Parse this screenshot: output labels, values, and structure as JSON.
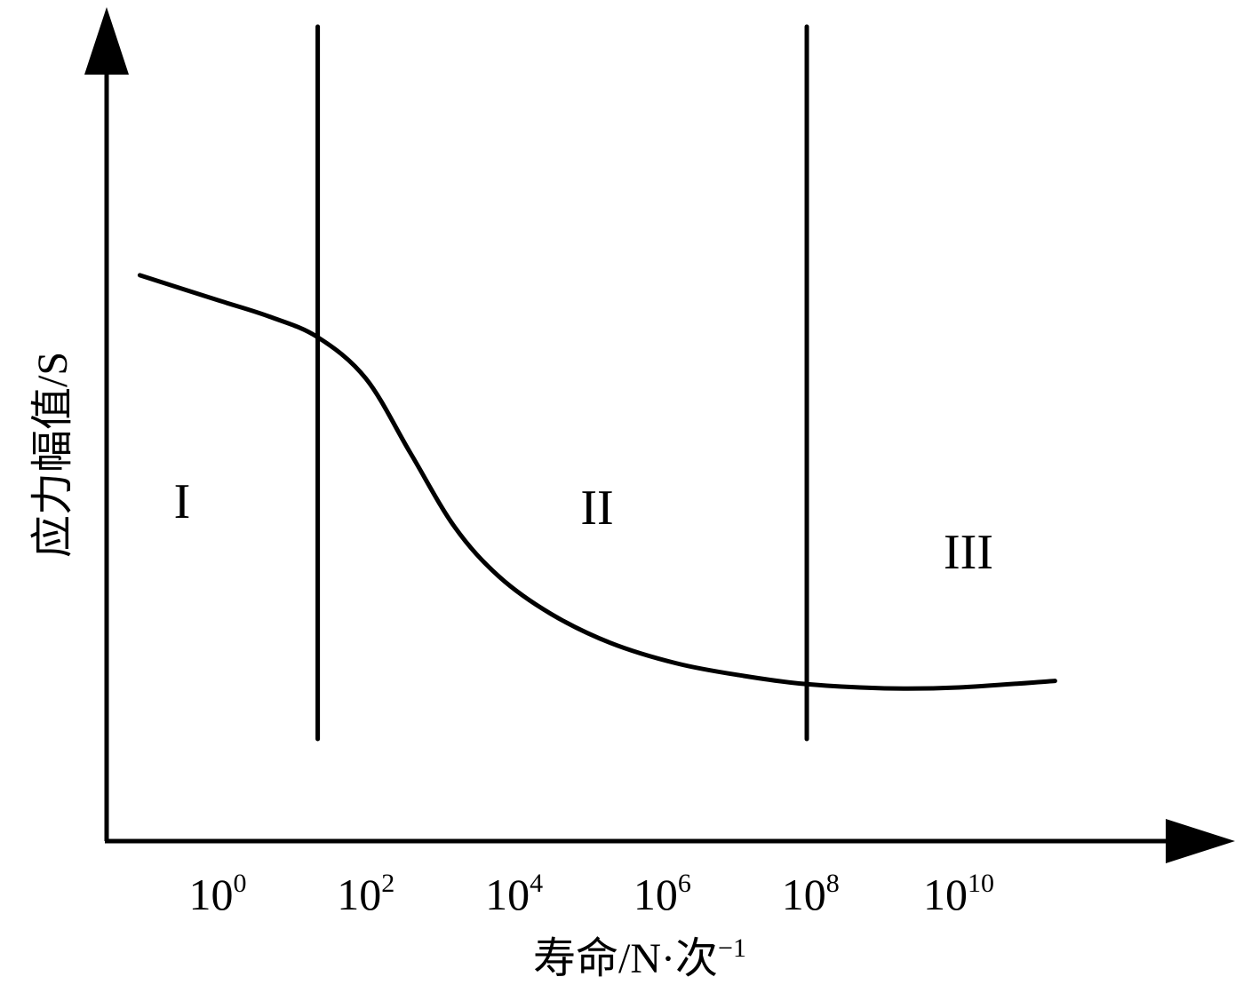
{
  "chart_data": {
    "type": "line",
    "xlabel": "寿命/N·次",
    "xlabel_superscript": "−1",
    "ylabel": "应力幅值/S",
    "x_scale": "log",
    "x_ticks": [
      {
        "base": "10",
        "exp": "0",
        "value": 1
      },
      {
        "base": "10",
        "exp": "2",
        "value": 100
      },
      {
        "base": "10",
        "exp": "4",
        "value": 10000
      },
      {
        "base": "10",
        "exp": "6",
        "value": 1000000
      },
      {
        "base": "10",
        "exp": "8",
        "value": 100000000
      },
      {
        "base": "10",
        "exp": "10",
        "value": 10000000000
      }
    ],
    "y_ticks": [],
    "grid": false,
    "legend": "none",
    "regions": [
      {
        "label": "I"
      },
      {
        "label": "II"
      },
      {
        "label": "III"
      }
    ],
    "region_boundaries_log10N": [
      1.35,
      7.95
    ],
    "series": [
      {
        "log10N": [
          -1.05,
          0.0,
          0.7,
          1.35,
          2.0,
          2.6,
          3.2,
          3.8,
          4.5,
          5.3,
          6.2,
          7.1,
          7.95,
          9.0,
          10.0,
          11.3
        ],
        "stress_relative": [
          0.685,
          0.655,
          0.635,
          0.61,
          0.56,
          0.47,
          0.38,
          0.32,
          0.275,
          0.24,
          0.215,
          0.2,
          0.19,
          0.185,
          0.186,
          0.194
        ]
      }
    ],
    "colors": {
      "line": "#000000",
      "axis": "#000000",
      "background": "#ffffff"
    }
  }
}
